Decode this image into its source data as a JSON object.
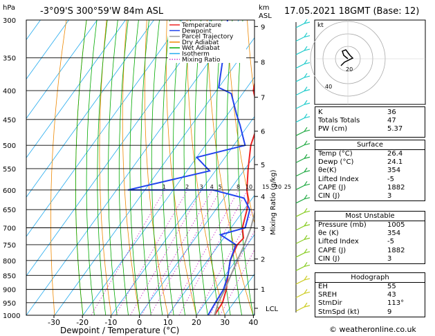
{
  "header": {
    "left_title": "-3°09'S 300°59'W 84m ASL",
    "right_title": "17.05.2021 18GMT (Base: 12)",
    "y_unit_left": "hPa",
    "y_unit_right_top": "km",
    "y_unit_right_bottom": "ASL"
  },
  "chart_data": {
    "type": "skew-t",
    "xlabel": "Dewpoint / Temperature (°C)",
    "ylabel_right": "Mixing Ratio (g/kg)",
    "ylabel_left": "hPa",
    "x_ticks": [
      -30,
      -20,
      -10,
      0,
      10,
      20,
      30,
      40
    ],
    "pressure_levels": [
      300,
      350,
      400,
      450,
      500,
      550,
      600,
      650,
      700,
      750,
      800,
      850,
      900,
      950,
      1000
    ],
    "km_ticks": [
      {
        "label": "9",
        "p": 308
      },
      {
        "label": "8",
        "p": 356
      },
      {
        "label": "7",
        "p": 411
      },
      {
        "label": "6",
        "p": 472
      },
      {
        "label": "5",
        "p": 541
      },
      {
        "label": "4",
        "p": 616
      },
      {
        "label": "3",
        "p": 701
      },
      {
        "label": "2",
        "p": 795
      },
      {
        "label": "1",
        "p": 899
      },
      {
        "label": "LCL",
        "p": 972
      }
    ],
    "mixing_ratio_labels": [
      "1",
      "2",
      "3",
      "4",
      "5",
      "8",
      "10",
      "15",
      "20",
      "25"
    ],
    "mixing_ratio_values": [
      1,
      2,
      3,
      4,
      5,
      8,
      10,
      15,
      20,
      25
    ],
    "legend": [
      "Temperature",
      "Dewpoint",
      "Parcel Trajectory",
      "Dry Adiabat",
      "Wet Adiabat",
      "Isotherm",
      "Mixing Ratio"
    ],
    "legend_colors": [
      "#ee2222",
      "#2244ee",
      "#999999",
      "#ee8800",
      "#00aa00",
      "#22aaee",
      "#cc33cc"
    ],
    "series": [
      {
        "name": "Temperature",
        "color": "#ee2222",
        "points": [
          [
            -31,
            300
          ],
          [
            -23,
            350
          ],
          [
            -17,
            400
          ],
          [
            -11,
            430
          ],
          [
            -7.5,
            450
          ],
          [
            -4,
            500
          ],
          [
            1,
            550
          ],
          [
            6,
            600
          ],
          [
            9,
            625
          ],
          [
            11,
            650
          ],
          [
            14,
            700
          ],
          [
            17,
            730
          ],
          [
            16.5,
            750
          ],
          [
            18,
            800
          ],
          [
            21,
            850
          ],
          [
            24,
            900
          ],
          [
            26,
            950
          ],
          [
            26.4,
            1000
          ]
        ]
      },
      {
        "name": "Dewpoint",
        "color": "#2244ee",
        "points": [
          [
            -44,
            300
          ],
          [
            -36,
            350
          ],
          [
            -30,
            395
          ],
          [
            -24,
            405
          ],
          [
            -17,
            440
          ],
          [
            -13,
            460
          ],
          [
            -6,
            500
          ],
          [
            -20,
            525
          ],
          [
            -12,
            555
          ],
          [
            -36,
            600
          ],
          [
            -6,
            600
          ],
          [
            7,
            620
          ],
          [
            12,
            650
          ],
          [
            15,
            700
          ],
          [
            8,
            720
          ],
          [
            16,
            750
          ],
          [
            18,
            800
          ],
          [
            21,
            850
          ],
          [
            23,
            900
          ],
          [
            23.5,
            950
          ],
          [
            24.1,
            1000
          ]
        ]
      },
      {
        "name": "Parcel Trajectory",
        "color": "#999999",
        "points": [
          [
            -10,
            300
          ],
          [
            -7,
            350
          ],
          [
            -4,
            400
          ],
          [
            0,
            450
          ],
          [
            4,
            500
          ],
          [
            8,
            550
          ],
          [
            11.5,
            600
          ],
          [
            14,
            650
          ],
          [
            17,
            700
          ],
          [
            19,
            750
          ],
          [
            20.5,
            800
          ],
          [
            22,
            850
          ],
          [
            23.5,
            900
          ],
          [
            24.5,
            950
          ],
          [
            26.4,
            1000
          ]
        ]
      }
    ],
    "wind_barb_count": 22,
    "hodograph_rings_labels": [
      "20",
      "40"
    ],
    "hodograph_label": "kt"
  },
  "indices": [
    {
      "label": "K",
      "value": "36"
    },
    {
      "label": "Totals Totals",
      "value": "47"
    },
    {
      "label": "PW (cm)",
      "value": "5.37"
    }
  ],
  "surface": {
    "title": "Surface",
    "rows": [
      {
        "label": "Temp (°C)",
        "value": "26.4"
      },
      {
        "label": "Dewp (°C)",
        "value": "24.1"
      },
      {
        "label": "θe(K)",
        "value": "354"
      },
      {
        "label": "Lifted Index",
        "value": "-5"
      },
      {
        "label": "CAPE (J)",
        "value": "1882"
      },
      {
        "label": "CIN (J)",
        "value": "3"
      }
    ]
  },
  "most_unstable": {
    "title": "Most Unstable",
    "rows": [
      {
        "label": "Pressure (mb)",
        "value": "1005"
      },
      {
        "label": "θe (K)",
        "value": "354"
      },
      {
        "label": "Lifted Index",
        "value": "-5"
      },
      {
        "label": "CAPE (J)",
        "value": "1882"
      },
      {
        "label": "CIN (J)",
        "value": "3"
      }
    ]
  },
  "hodograph": {
    "title": "Hodograph",
    "rows": [
      {
        "label": "EH",
        "value": "55"
      },
      {
        "label": "SREH",
        "value": "43"
      },
      {
        "label": "StmDir",
        "value": "113°"
      },
      {
        "label": "StmSpd (kt)",
        "value": "9"
      }
    ]
  },
  "credit": "© weatheronline.co.uk"
}
